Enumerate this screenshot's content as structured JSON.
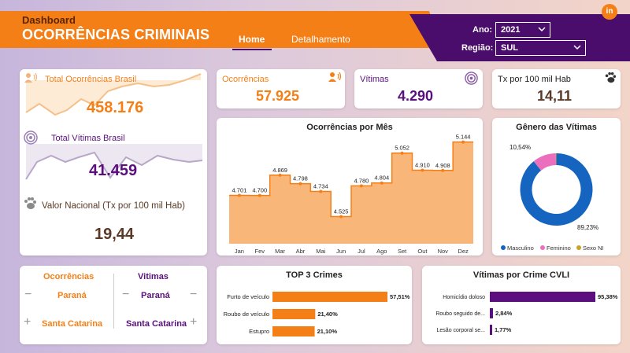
{
  "header": {
    "subtitle": "Dashboard",
    "title": "OCORRÊNCIAS CRIMINAIS",
    "tabs": [
      {
        "label": "Home",
        "active": true
      },
      {
        "label": "Detalhamento",
        "active": false
      }
    ],
    "logo": "in"
  },
  "filters": {
    "ano_label": "Ano:",
    "ano_value": "2021",
    "regiao_label": "Região:",
    "regiao_value": "SUL"
  },
  "national": {
    "total_ocorrencias_label": "Total Ocorrências Brasil",
    "total_ocorrencias_value": "458.176",
    "total_vitimas_label": "Total Vítimas Brasil",
    "total_vitimas_value": "41.459",
    "valor_nacional_label": "Valor Nacional (Tx por 100 mil Hab)",
    "valor_nacional_value": "19,44"
  },
  "kpis": {
    "ocorrencias_label": "Ocorrências",
    "ocorrencias_value": "57.925",
    "vitimas_label": "Vítimas",
    "vitimas_value": "4.290",
    "tx_label": "Tx por 100 mil Hab",
    "tx_value": "14,11"
  },
  "ranking": {
    "ocorrencias_header": "Ocorrências",
    "vitimas_header": "Vitimas",
    "ocorrencias_min": "Paraná",
    "ocorrencias_max": "Santa Catarina",
    "vitimas_min": "Paraná",
    "vitimas_max": "Santa Catarina",
    "minus": "−",
    "plus": "+"
  },
  "colors": {
    "orange": "#f57f17",
    "purple": "#5b0f7e",
    "masculino": "#1565c0",
    "feminino": "#ec6fbd",
    "sexo_ni": "#c9a227"
  },
  "chart_data": [
    {
      "type": "area",
      "title": "Ocorrências por Mês",
      "categories": [
        "Jan",
        "Fev",
        "Mar",
        "Abr",
        "Mai",
        "Jun",
        "Jul",
        "Ago",
        "Set",
        "Out",
        "Nov",
        "Dez"
      ],
      "values": [
        4701,
        4700,
        4869,
        4798,
        4734,
        4525,
        4780,
        4804,
        5052,
        4910,
        4908,
        5144
      ],
      "labels": [
        "4.701",
        "4.700",
        "4.869",
        "4.798",
        "4.734",
        "4.525",
        "4.780",
        "4.804",
        "5.052",
        "4.910",
        "4.908",
        "5.144"
      ],
      "step": true,
      "ylim": [
        4300,
        5200
      ]
    },
    {
      "type": "pie",
      "donut": true,
      "title": "Gênero das Vítimas",
      "categories": [
        "Masculino",
        "Feminino",
        "Sexo NI"
      ],
      "values": [
        89.23,
        10.54,
        0.23
      ],
      "labels": [
        "89,23%",
        "10,54%",
        ""
      ],
      "legend": "bottom"
    },
    {
      "type": "bar",
      "orientation": "horizontal",
      "title": "TOP 3 Crimes",
      "categories": [
        "Furto de veículo",
        "Roubo de veículo",
        "Estupro"
      ],
      "values": [
        57.51,
        21.4,
        21.1
      ],
      "labels": [
        "57,51%",
        "21,40%",
        "21,10%"
      ],
      "xlim": [
        0,
        57.51
      ]
    },
    {
      "type": "bar",
      "orientation": "horizontal",
      "title": "Vítimas por Crime CVLI",
      "categories": [
        "Homicídio doloso",
        "Roubo seguido de...",
        "Lesão corporal se..."
      ],
      "values": [
        95.38,
        2.84,
        1.77
      ],
      "labels": [
        "95,38%",
        "2,84%",
        "1,77%"
      ],
      "xlim": [
        0,
        95.38
      ]
    }
  ]
}
